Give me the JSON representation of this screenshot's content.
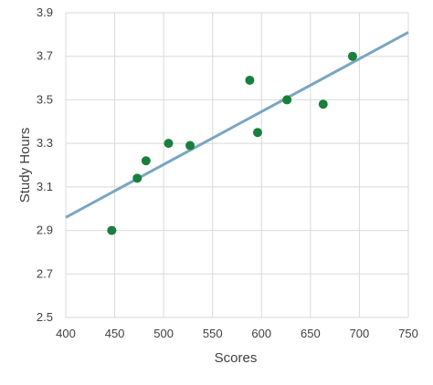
{
  "chart_data": {
    "type": "scatter",
    "title": "",
    "xlabel": "Scores",
    "ylabel": "Study Hours",
    "xlim": [
      400,
      750
    ],
    "ylim": [
      2.5,
      3.9
    ],
    "xticks": [
      "400",
      "450",
      "500",
      "550",
      "600",
      "650",
      "700",
      "750"
    ],
    "yticks": [
      "2.5",
      "2.7",
      "2.9",
      "3.1",
      "3.3",
      "3.5",
      "3.7",
      "3.9"
    ],
    "grid": true,
    "legend": "none",
    "series": [
      {
        "points": [
          {
            "x": 447,
            "y": 2.9
          },
          {
            "x": 473,
            "y": 3.14
          },
          {
            "x": 482,
            "y": 3.22
          },
          {
            "x": 505,
            "y": 3.3
          },
          {
            "x": 527,
            "y": 3.29
          },
          {
            "x": 588,
            "y": 3.59
          },
          {
            "x": 596,
            "y": 3.35
          },
          {
            "x": 626,
            "y": 3.5
          },
          {
            "x": 663,
            "y": 3.48
          },
          {
            "x": 693,
            "y": 3.7
          }
        ],
        "color": "#1a7f3c"
      }
    ],
    "trendline": {
      "type": "linear",
      "x": [
        400,
        750
      ],
      "y": [
        2.96,
        3.81
      ],
      "color": "#7aa6c2"
    }
  }
}
